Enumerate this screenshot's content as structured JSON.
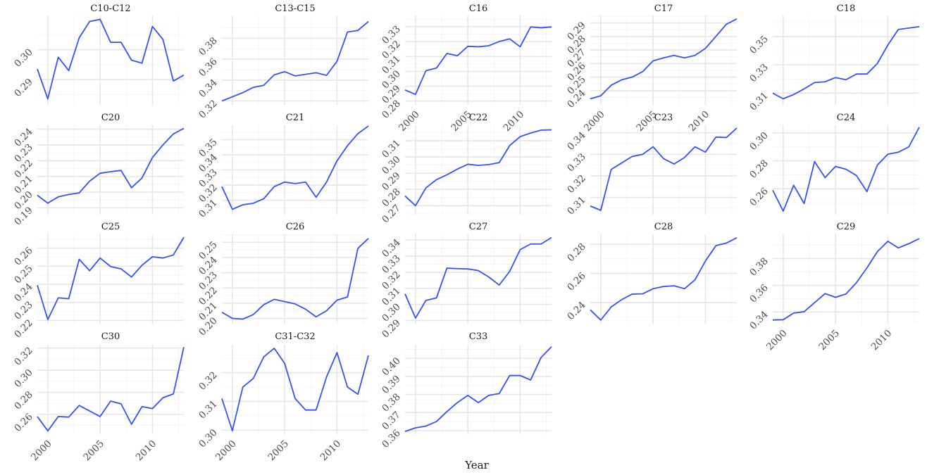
{
  "figure": {
    "xlabel": "Year"
  },
  "chart_data": {
    "type": "line",
    "grid": true,
    "line_color": "#3352ff",
    "xlabel": "Year",
    "xticks": [
      2000,
      2005,
      2010
    ],
    "xlim": [
      1999,
      2013
    ],
    "x": [
      1999,
      2000,
      2001,
      2002,
      2003,
      2004,
      2005,
      2006,
      2007,
      2008,
      2009,
      2010,
      2011,
      2012,
      2013
    ],
    "panels": [
      {
        "title": "C10-C12",
        "ylim": [
          0.2815,
          0.3115
        ],
        "yticks": [
          "0.29",
          "0.30"
        ],
        "tick_values": [
          0.29,
          0.3
        ],
        "values": [
          0.2935,
          0.2835,
          0.2975,
          0.293,
          0.304,
          0.3095,
          0.3102,
          0.3025,
          0.3025,
          0.2965,
          0.2955,
          0.3078,
          0.3035,
          0.2895,
          0.2915
        ]
      },
      {
        "title": "C13-C15",
        "ylim": [
          0.3163,
          0.4018
        ],
        "yticks": [
          "0.32",
          "0.34",
          "0.36",
          "0.38"
        ],
        "tick_values": [
          0.32,
          0.34,
          0.36,
          0.38
        ],
        "values": [
          0.32,
          0.324,
          0.328,
          0.333,
          0.335,
          0.345,
          0.348,
          0.344,
          0.3455,
          0.347,
          0.3445,
          0.358,
          0.386,
          0.3875,
          0.396
        ]
      },
      {
        "title": "C16",
        "ylim": [
          0.2775,
          0.3375
        ],
        "yticks": [
          "0.28",
          "0.29",
          "0.30",
          "0.31",
          "0.32",
          "0.33"
        ],
        "tick_values": [
          0.28,
          0.29,
          0.3,
          0.31,
          0.32,
          0.33
        ],
        "values": [
          0.2875,
          0.2845,
          0.3005,
          0.3022,
          0.312,
          0.3105,
          0.3168,
          0.3165,
          0.3172,
          0.32,
          0.3218,
          0.3165,
          0.3298,
          0.3292,
          0.3298
        ]
      },
      {
        "title": "C17",
        "ylim": [
          0.2295,
          0.2955
        ],
        "yticks": [
          "0.24",
          "0.25",
          "0.26",
          "0.27",
          "0.28",
          "0.29"
        ],
        "tick_values": [
          0.24,
          0.25,
          0.26,
          0.27,
          0.28,
          0.29
        ],
        "values": [
          0.234,
          0.2362,
          0.244,
          0.248,
          0.25,
          0.254,
          0.262,
          0.2642,
          0.266,
          0.2642,
          0.266,
          0.2712,
          0.28,
          0.289,
          0.293
        ]
      },
      {
        "title": "C18",
        "ylim": [
          0.3017,
          0.3649
        ],
        "yticks": [
          "0.31",
          "0.33",
          "0.35"
        ],
        "tick_values": [
          0.31,
          0.33,
          0.35
        ],
        "values": [
          0.31,
          0.306,
          0.309,
          0.313,
          0.3175,
          0.318,
          0.321,
          0.3195,
          0.3235,
          0.3235,
          0.331,
          0.344,
          0.355,
          0.356,
          0.357
        ]
      },
      {
        "title": "C20",
        "ylim": [
          0.1857,
          0.2425
        ],
        "yticks": [
          "0.19",
          "0.20",
          "0.21",
          "0.22",
          "0.23",
          "0.24"
        ],
        "tick_values": [
          0.19,
          0.2,
          0.21,
          0.22,
          0.23,
          0.24
        ],
        "values": [
          0.198,
          0.193,
          0.197,
          0.1985,
          0.1995,
          0.207,
          0.212,
          0.213,
          0.2138,
          0.2028,
          0.209,
          0.222,
          0.23,
          0.237,
          0.2405
        ]
      },
      {
        "title": "C21",
        "ylim": [
          0.3005,
          0.3595
        ],
        "yticks": [
          "0.31",
          "0.32",
          "0.33",
          "0.34",
          "0.35"
        ],
        "tick_values": [
          0.31,
          0.32,
          0.33,
          0.34,
          0.35
        ],
        "values": [
          0.319,
          0.304,
          0.307,
          0.308,
          0.311,
          0.319,
          0.322,
          0.321,
          0.322,
          0.312,
          0.322,
          0.336,
          0.346,
          0.354,
          0.359
        ]
      },
      {
        "title": "C22",
        "ylim": [
          0.2645,
          0.3195
        ],
        "yticks": [
          "0.27",
          "0.28",
          "0.29",
          "0.30",
          "0.31"
        ],
        "tick_values": [
          0.27,
          0.28,
          0.29,
          0.3,
          0.31
        ],
        "values": [
          0.276,
          0.27,
          0.281,
          0.286,
          0.289,
          0.2925,
          0.2955,
          0.2948,
          0.2953,
          0.2965,
          0.307,
          0.3125,
          0.3147,
          0.3165,
          0.3167
        ]
      },
      {
        "title": "C23",
        "ylim": [
          0.302,
          0.3435
        ],
        "yticks": [
          "0.31",
          "0.32",
          "0.33",
          "0.34"
        ],
        "tick_values": [
          0.31,
          0.32,
          0.33,
          0.34
        ],
        "values": [
          0.306,
          0.304,
          0.323,
          0.326,
          0.329,
          0.33,
          0.3335,
          0.328,
          0.3255,
          0.3285,
          0.3335,
          0.331,
          0.338,
          0.3378,
          0.3422
        ]
      },
      {
        "title": "C24",
        "ylim": [
          0.2415,
          0.3055
        ],
        "yticks": [
          "0.26",
          "0.28",
          "0.30"
        ],
        "tick_values": [
          0.26,
          0.28,
          0.3
        ],
        "values": [
          0.259,
          0.244,
          0.2625,
          0.2495,
          0.2795,
          0.268,
          0.276,
          0.274,
          0.2695,
          0.258,
          0.277,
          0.2848,
          0.2862,
          0.29,
          0.304
        ]
      },
      {
        "title": "C25",
        "ylim": [
          0.2182,
          0.2676
        ],
        "yticks": [
          "0.22",
          "0.23",
          "0.24",
          "0.25",
          "0.26"
        ],
        "tick_values": [
          0.22,
          0.23,
          0.24,
          0.25,
          0.26
        ],
        "values": [
          0.2395,
          0.2205,
          0.2325,
          0.232,
          0.2538,
          0.2475,
          0.2545,
          0.2498,
          0.2485,
          0.244,
          0.2505,
          0.2552,
          0.2545,
          0.2562,
          0.266
        ]
      },
      {
        "title": "C26",
        "ylim": [
          0.1965,
          0.2552
        ],
        "yticks": [
          "0.20",
          "0.21",
          "0.22",
          "0.23",
          "0.24",
          "0.25"
        ],
        "tick_values": [
          0.2,
          0.21,
          0.22,
          0.23,
          0.24,
          0.25
        ],
        "values": [
          0.204,
          0.2,
          0.1995,
          0.2025,
          0.209,
          0.2125,
          0.211,
          0.2095,
          0.206,
          0.201,
          0.205,
          0.212,
          0.214,
          0.246,
          0.2525
        ]
      },
      {
        "title": "C27",
        "ylim": [
          0.288,
          0.3435
        ],
        "yticks": [
          "0.29",
          "0.30",
          "0.31",
          "0.32",
          "0.33",
          "0.34"
        ],
        "tick_values": [
          0.29,
          0.3,
          0.31,
          0.32,
          0.33,
          0.34
        ],
        "values": [
          0.3065,
          0.2915,
          0.3025,
          0.304,
          0.3225,
          0.3222,
          0.322,
          0.321,
          0.317,
          0.312,
          0.3205,
          0.334,
          0.3375,
          0.3375,
          0.3415
        ]
      },
      {
        "title": "C28",
        "ylim": [
          0.2255,
          0.2868
        ],
        "yticks": [
          "0.24",
          "0.26",
          "0.28"
        ],
        "tick_values": [
          0.24,
          0.26,
          0.28
        ],
        "values": [
          0.235,
          0.228,
          0.237,
          0.242,
          0.2458,
          0.246,
          0.2495,
          0.251,
          0.2515,
          0.2495,
          0.2555,
          0.2685,
          0.279,
          0.2808,
          0.2845
        ]
      },
      {
        "title": "C29",
        "ylim": [
          0.3312,
          0.3982
        ],
        "yticks": [
          "0.34",
          "0.36",
          "0.38"
        ],
        "tick_values": [
          0.34,
          0.36,
          0.38
        ],
        "values": [
          0.334,
          0.3342,
          0.3392,
          0.3402,
          0.347,
          0.3538,
          0.351,
          0.3535,
          0.362,
          0.373,
          0.3852,
          0.393,
          0.388,
          0.3912,
          0.395
        ]
      },
      {
        "title": "C30",
        "ylim": [
          0.242,
          0.323
        ],
        "yticks": [
          "0.26",
          "0.28",
          "0.30",
          "0.32"
        ],
        "tick_values": [
          0.26,
          0.28,
          0.3,
          0.32
        ],
        "values": [
          0.258,
          0.245,
          0.258,
          0.2575,
          0.268,
          0.263,
          0.258,
          0.272,
          0.2695,
          0.251,
          0.267,
          0.2652,
          0.275,
          0.2785,
          0.321
        ]
      },
      {
        "title": "C31-C32",
        "ylim": [
          0.2986,
          0.3297
        ],
        "yticks": [
          "0.30",
          "0.31",
          "0.32"
        ],
        "tick_values": [
          0.3,
          0.31,
          0.32
        ],
        "values": [
          0.311,
          0.2998,
          0.315,
          0.318,
          0.3255,
          0.3285,
          0.3232,
          0.311,
          0.307,
          0.307,
          0.3185,
          0.327,
          0.315,
          0.3125,
          0.326
        ]
      },
      {
        "title": "C33",
        "ylim": [
          0.358,
          0.4075
        ],
        "yticks": [
          "0.36",
          "0.37",
          "0.38",
          "0.39",
          "0.40"
        ],
        "tick_values": [
          0.36,
          0.37,
          0.38,
          0.39,
          0.4
        ],
        "values": [
          0.3595,
          0.3615,
          0.3625,
          0.365,
          0.3705,
          0.3755,
          0.3795,
          0.3755,
          0.3795,
          0.3805,
          0.3905,
          0.3905,
          0.388,
          0.4005,
          0.4065
        ]
      }
    ]
  }
}
